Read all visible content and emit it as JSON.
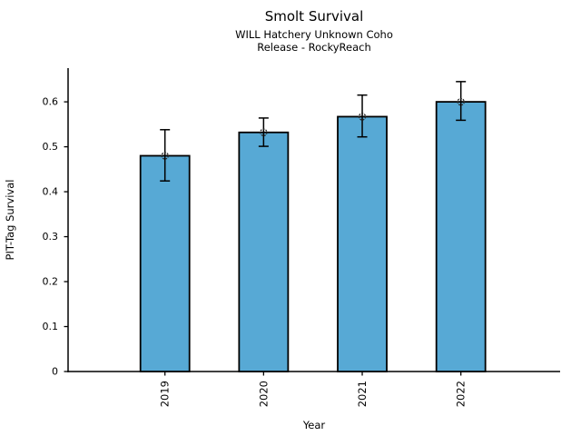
{
  "chart_data": {
    "type": "bar",
    "title": "Smolt Survival",
    "subtitle": [
      "WILL Hatchery Unknown Coho",
      "Release - RockyReach"
    ],
    "xlabel": "Year",
    "ylabel": "PIT-Tag Survival",
    "categories": [
      "2019",
      "2020",
      "2021",
      "2022"
    ],
    "series": [
      {
        "name": "PIT-Tag Survival",
        "values": [
          0.48,
          0.532,
          0.567,
          0.6
        ],
        "error_low": [
          0.424,
          0.501,
          0.522,
          0.559
        ],
        "error_high": [
          0.538,
          0.564,
          0.615,
          0.645
        ]
      }
    ],
    "yticks": [
      0,
      0.1,
      0.2,
      0.3,
      0.4,
      0.5,
      0.6
    ],
    "ytick_labels": [
      "0",
      "0.1",
      "0.2",
      "0.3",
      "0.4",
      "0.5",
      "0.6"
    ],
    "ylim": [
      0,
      0.675
    ],
    "grid": false,
    "legend": false,
    "error_bars": true,
    "marker": "open-circle",
    "colors": {
      "bar_fill": "#57a9d5",
      "bar_edge": "#000000",
      "error_bar": "#000000",
      "marker_edge": "#2a2a2a",
      "axis": "#000000",
      "background": "#ffffff"
    }
  }
}
